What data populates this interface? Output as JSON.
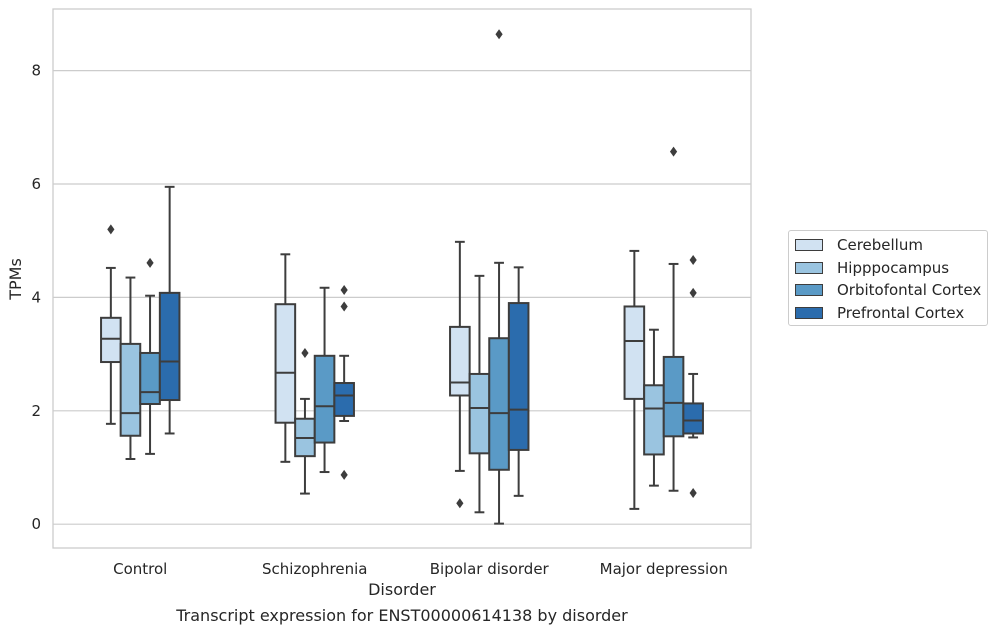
{
  "chart_data": {
    "type": "box",
    "caption": "Transcript expression for ENST00000614138 by disorder",
    "xlabel": "Disorder",
    "ylabel": "TPMs",
    "ylim": [
      -0.4,
      9.1
    ],
    "yticks": [
      0,
      2,
      4,
      6,
      8
    ],
    "grid": "horizontal",
    "legend_position": "right",
    "categories": [
      "Control",
      "Schizophrenia",
      "Bipolar disorder",
      "Major depression"
    ],
    "series": [
      {
        "name": "Cerebellum",
        "color": "#d1e2f2",
        "boxes": [
          {
            "whislo": 1.77,
            "q1": 2.86,
            "med": 3.27,
            "q3": 3.64,
            "whishi": 4.52,
            "fliers": [
              5.2
            ]
          },
          {
            "whislo": 1.1,
            "q1": 1.79,
            "med": 2.67,
            "q3": 3.88,
            "whishi": 4.76,
            "fliers": []
          },
          {
            "whislo": 0.94,
            "q1": 2.27,
            "med": 2.5,
            "q3": 3.48,
            "whishi": 4.98,
            "fliers": [
              0.37
            ]
          },
          {
            "whislo": 0.27,
            "q1": 2.21,
            "med": 3.23,
            "q3": 3.84,
            "whishi": 4.82,
            "fliers": []
          }
        ]
      },
      {
        "name": "Hipppocampus",
        "color": "#9ac4e0",
        "boxes": [
          {
            "whislo": 1.15,
            "q1": 1.56,
            "med": 1.96,
            "q3": 3.18,
            "whishi": 4.35,
            "fliers": []
          },
          {
            "whislo": 0.54,
            "q1": 1.2,
            "med": 1.52,
            "q3": 1.86,
            "whishi": 2.21,
            "fliers": [
              3.02
            ]
          },
          {
            "whislo": 0.21,
            "q1": 1.25,
            "med": 2.05,
            "q3": 2.65,
            "whishi": 4.38,
            "fliers": []
          },
          {
            "whislo": 0.68,
            "q1": 1.23,
            "med": 2.04,
            "q3": 2.45,
            "whishi": 3.43,
            "fliers": []
          }
        ]
      },
      {
        "name": "Orbitofontal Cortex",
        "color": "#5a9ac6",
        "boxes": [
          {
            "whislo": 1.24,
            "q1": 2.12,
            "med": 2.33,
            "q3": 3.02,
            "whishi": 4.03,
            "fliers": [
              4.61
            ]
          },
          {
            "whislo": 0.92,
            "q1": 1.44,
            "med": 2.08,
            "q3": 2.97,
            "whishi": 4.17,
            "fliers": []
          },
          {
            "whislo": 0.01,
            "q1": 0.96,
            "med": 1.96,
            "q3": 3.28,
            "whishi": 4.61,
            "fliers": [
              8.64
            ]
          },
          {
            "whislo": 0.59,
            "q1": 1.55,
            "med": 2.14,
            "q3": 2.95,
            "whishi": 4.59,
            "fliers": [
              6.57
            ]
          }
        ]
      },
      {
        "name": "Prefrontal Cortex",
        "color": "#2b6cad",
        "boxes": [
          {
            "whislo": 1.6,
            "q1": 2.19,
            "med": 2.87,
            "q3": 4.08,
            "whishi": 5.95,
            "fliers": []
          },
          {
            "whislo": 1.82,
            "q1": 1.91,
            "med": 2.27,
            "q3": 2.49,
            "whishi": 2.97,
            "fliers": [
              0.87,
              3.84,
              4.13
            ]
          },
          {
            "whislo": 0.5,
            "q1": 1.31,
            "med": 2.02,
            "q3": 3.9,
            "whishi": 4.53,
            "fliers": []
          },
          {
            "whislo": 1.53,
            "q1": 1.6,
            "med": 1.83,
            "q3": 2.13,
            "whishi": 2.65,
            "fliers": [
              0.55,
              4.08,
              4.66
            ]
          }
        ]
      }
    ]
  }
}
